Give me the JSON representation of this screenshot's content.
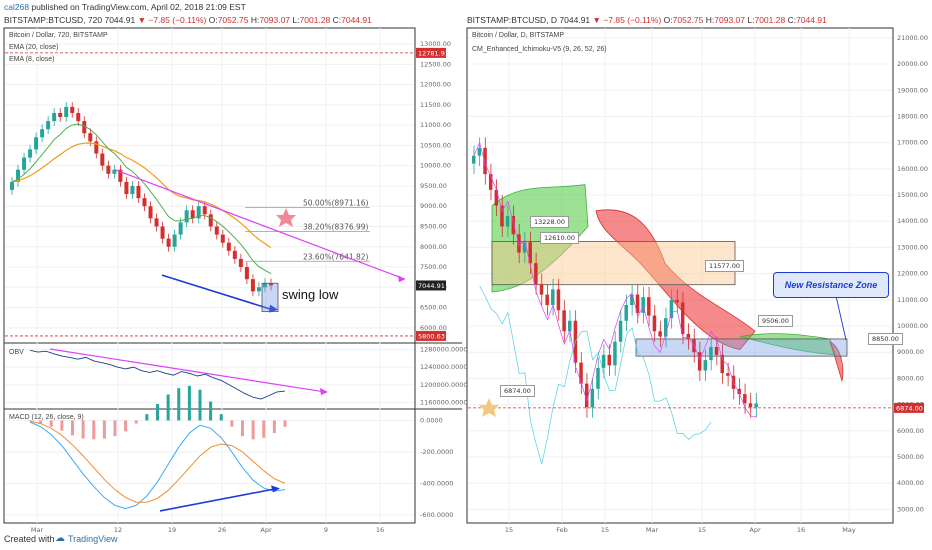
{
  "header": {
    "publisher_line": [
      {
        "text": "cal268",
        "color": "#2a6fb0"
      },
      {
        "text": " published on TradingView.com, April 02, 2018 21:09 EST",
        "color": "#333"
      }
    ],
    "left": {
      "symbol": "BITSTAMP:BTCUSD, 720",
      "last": "7044.91",
      "change": "−7.85 (−0.11%)",
      "o": "7052.75",
      "h": "7093.07",
      "l": "7001.28",
      "c": "7044.91"
    },
    "right": {
      "symbol": "BITSTAMP:BTCUSD, D",
      "last": "7044.91",
      "change": "−7.85 (−0.11%)",
      "o": "7052.75",
      "h": "7093.07",
      "l": "7001.28",
      "c": "7044.91"
    },
    "labels": {
      "o": "O:",
      "h": "H:",
      "l": "L:",
      "c": "C:"
    }
  },
  "footer": {
    "created_with": "Created with",
    "brand": "TradingView"
  },
  "colors": {
    "up": "#26a69a",
    "down": "#d32f2f",
    "pink": "#e040fb",
    "blue": "#1e3bd6",
    "ema20": "#f39c12",
    "ema8": "#4caf50"
  },
  "chart_data": [
    {
      "type": "candlestick",
      "title": "Bitcoin / Dollar, 720, BITSTAMP",
      "legend": [
        "EMA (20, close)",
        "EMA (8, close)"
      ],
      "y_ticks": [
        6000,
        6500,
        7000,
        7500,
        8000,
        8500,
        9000,
        9500,
        10000,
        10500,
        11000,
        11500,
        12000,
        12500,
        13000
      ],
      "y_tick_labels": [
        "6000.00",
        "6500.00",
        "7000.00",
        "7500.00",
        "8000.00",
        "8500.00",
        "9000.00",
        "9500.00",
        "10000.00",
        "10500.00",
        "11000.00",
        "11500.00",
        "12000.00",
        "12500.00",
        "13000.00"
      ],
      "ylim": [
        5700,
        13100
      ],
      "x_ticks": [
        "Mar",
        "12",
        "19",
        "26",
        "Apr",
        "9",
        "16"
      ],
      "price_tags": [
        {
          "value": 12781.91,
          "label": "12781.91"
        },
        {
          "value": 5800.63,
          "label": "5800.63"
        },
        {
          "value": 7044.91,
          "label": "7044.91"
        }
      ],
      "fib_levels": [
        {
          "label": "50.00%(8971.16)",
          "value": 8971.16
        },
        {
          "label": "38.20%(8376.99)",
          "value": 8376.99
        },
        {
          "label": "23.60%(7641.82)",
          "value": 7641.82
        }
      ],
      "annotations": [
        "swing low"
      ],
      "closes": [
        9600,
        9900,
        10200,
        10400,
        10700,
        10900,
        11100,
        11300,
        11200,
        11450,
        11300,
        11100,
        10800,
        10600,
        10300,
        10000,
        9800,
        9900,
        9600,
        9300,
        9500,
        9200,
        9000,
        8700,
        8500,
        8200,
        8000,
        8300,
        8600,
        8900,
        8700,
        9000,
        8800,
        8500,
        8300,
        8100,
        7900,
        7700,
        7500,
        7200,
        6900,
        7000,
        7100,
        7044
      ]
    },
    {
      "type": "line",
      "title": "OBV",
      "y_tick_labels": [
        "1280000.0000",
        "1240000.0000",
        "1200000.0000",
        "1160000.0000"
      ],
      "ylim": [
        1150000,
        1290000
      ],
      "values": [
        1278000,
        1274000,
        1276000,
        1270000,
        1265000,
        1262000,
        1258000,
        1262000,
        1254000,
        1250000,
        1246000,
        1240000,
        1236000,
        1240000,
        1232000,
        1228000,
        1232000,
        1226000,
        1222000,
        1230000,
        1226000,
        1220000,
        1224000,
        1216000,
        1210000,
        1200000,
        1190000,
        1180000,
        1172000,
        1168000,
        1176000,
        1184000,
        1186000
      ]
    },
    {
      "type": "line",
      "title": "MACD (12, 26, close, 9)",
      "y_tick_labels": [
        "0.0000",
        "-200.0000",
        "-400.0000",
        "-600.0000"
      ],
      "ylim": [
        -620,
        60
      ],
      "macd": [
        -10,
        -40,
        -90,
        -160,
        -250,
        -340,
        -420,
        -490,
        -540,
        -560,
        -540,
        -480,
        -390,
        -280,
        -170,
        -80,
        -30,
        -50,
        -110,
        -200,
        -300,
        -380,
        -430,
        -450,
        -440
      ],
      "signal": [
        -5,
        -20,
        -50,
        -95,
        -155,
        -225,
        -300,
        -375,
        -440,
        -490,
        -520,
        -520,
        -495,
        -445,
        -375,
        -300,
        -225,
        -170,
        -150,
        -160,
        -200,
        -260,
        -320,
        -370,
        -400
      ]
    },
    {
      "type": "candlestick",
      "title": "Bitcoin / Dollar, D, BITSTAMP",
      "legend": [
        "CM_Enhanced_Ichimoku-V5 (9, 26, 52, 26)"
      ],
      "y_ticks": [
        3000,
        4000,
        5000,
        6000,
        7000,
        8000,
        9000,
        10000,
        11000,
        12000,
        13000,
        14000,
        15000,
        16000,
        17000,
        18000,
        19000,
        20000,
        21000
      ],
      "y_tick_labels": [
        "3000.00",
        "4000.00",
        "5000.00",
        "6000.00",
        "7000.00",
        "8000.00",
        "9000.00",
        "10000.00",
        "11000.00",
        "12000.00",
        "13000.00",
        "14000.00",
        "15000.00",
        "16000.00",
        "17000.00",
        "18000.00",
        "19000.00",
        "20000.00",
        "21000.00"
      ],
      "ylim": [
        2900,
        21300
      ],
      "x_ticks": [
        "15",
        "Feb",
        "15",
        "Mar",
        "15",
        "Apr",
        "16",
        "May"
      ],
      "price_tags": [
        {
          "value": 6874.0,
          "label": "6874.00"
        }
      ],
      "callouts": [
        "13228.00",
        "12610.00",
        "11577.00",
        "9506.00",
        "8850.00",
        "6874.00"
      ],
      "annotations": [
        "New Resistance Zone"
      ],
      "closes": [
        16500,
        16800,
        15800,
        15200,
        14600,
        13800,
        14200,
        13500,
        12800,
        13200,
        12400,
        11600,
        11200,
        10800,
        11400,
        10600,
        9800,
        10200,
        8600,
        7800,
        6900,
        7600,
        8400,
        8900,
        8500,
        9400,
        10200,
        10800,
        11200,
        10500,
        11100,
        10400,
        9800,
        9600,
        10300,
        11000,
        10900,
        9700,
        9500,
        9000,
        8300,
        8700,
        9200,
        8900,
        8200,
        8100,
        7600,
        7400,
        7050,
        6900,
        7044
      ]
    }
  ]
}
